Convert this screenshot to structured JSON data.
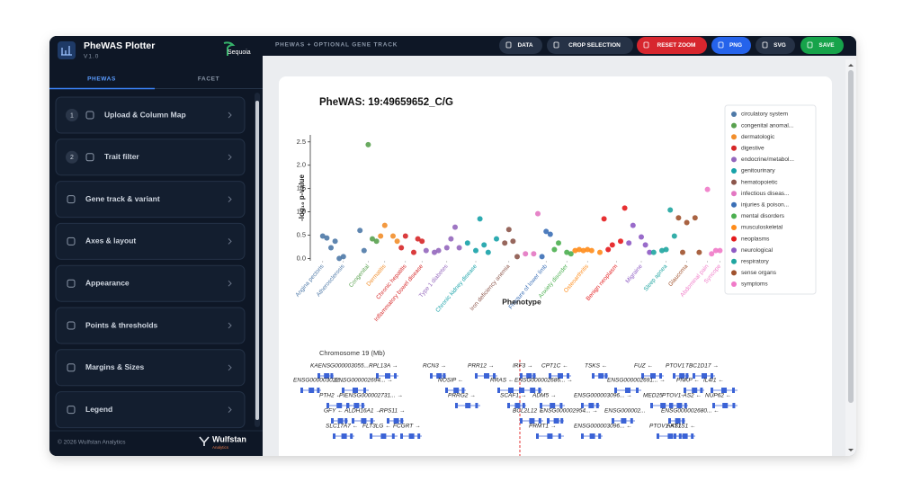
{
  "app": {
    "title": "PheWAS Plotter",
    "version": "V1.0",
    "brand": "Sequoia",
    "tabs": [
      "PHEWAS",
      "FACET"
    ],
    "sections": [
      {
        "step": "1",
        "label": "Upload & Column Map"
      },
      {
        "step": "2",
        "label": "Trait filter"
      },
      {
        "label": "Gene track & variant"
      },
      {
        "label": "Axes & layout"
      },
      {
        "label": "Appearance"
      },
      {
        "label": "Points & thresholds"
      },
      {
        "label": "Margins & Sizes"
      },
      {
        "label": "Legend"
      }
    ],
    "footer": "© 2026 Wulfstan Analytics",
    "footer_brand": "Wulfstan",
    "footer_brand_sub": "Analytics"
  },
  "toolbar": {
    "title": "PHEWAS + OPTIONAL GENE TRACK",
    "buttons": [
      "DATA",
      "CROP SELECTION",
      "RESET ZOOM",
      "PNG",
      "SVG",
      "SAVE"
    ]
  },
  "chart_data": {
    "type": "scatter",
    "title": "PheWAS: 19:49659652_C/G",
    "x_label": "Phenotype",
    "y_label": "-log₁₀ p-value",
    "xlim": [
      0,
      100
    ],
    "ylim": [
      -0.05,
      2.65
    ],
    "yticks": [
      {
        "value": 0,
        "label": "0.0"
      },
      {
        "value": 0.5,
        "label": "0.5"
      },
      {
        "value": 1,
        "label": "1.0"
      },
      {
        "value": 1.5,
        "label": "1.5"
      },
      {
        "value": 2,
        "label": "2.0"
      },
      {
        "value": 2.5,
        "label": "2.5"
      }
    ],
    "xticks": [
      {
        "value": 3,
        "label": "Angina pectoris"
      },
      {
        "value": 8,
        "label": "Atherosclerosis"
      },
      {
        "value": 14,
        "label": "Congenital"
      },
      {
        "value": 18,
        "label": "Dermatitis"
      },
      {
        "value": 23,
        "label": "Chronic hepatitis"
      },
      {
        "value": 27,
        "label": "Inflammatory bowel disease"
      },
      {
        "value": 33,
        "label": "Type 1 diabetes"
      },
      {
        "value": 40,
        "label": "Chronic kidney disease"
      },
      {
        "value": 48,
        "label": "Iron deficiency anemia"
      },
      {
        "value": 57,
        "label": "Fracture of lower limb"
      },
      {
        "value": 62,
        "label": "Anxiety disorder"
      },
      {
        "value": 67,
        "label": "Osteoarthritis"
      },
      {
        "value": 74,
        "label": "Benign neoplasm"
      },
      {
        "value": 80,
        "label": "Migraine"
      },
      {
        "value": 86,
        "label": "Sleep apnea"
      },
      {
        "value": 91,
        "label": "Glaucoma"
      },
      {
        "value": 96,
        "label": "Abdominal pain"
      },
      {
        "value": 99,
        "label": "Syncope"
      }
    ],
    "legend": "right",
    "series": [
      {
        "name": "circulatory system",
        "color": "#4e79a7",
        "x": [
          3,
          4,
          5,
          6,
          7,
          8,
          12,
          13
        ],
        "values": [
          0.48,
          0.44,
          0.23,
          0.37,
          0.0,
          0.04,
          0.6,
          0.17
        ]
      },
      {
        "name": "congenital anomal...",
        "color": "#59a14f",
        "x": [
          14,
          15,
          16
        ],
        "values": [
          2.44,
          0.42,
          0.37
        ]
      },
      {
        "name": "dermatologic",
        "color": "#f28e2b",
        "x": [
          17,
          18,
          20,
          21
        ],
        "values": [
          0.48,
          0.71,
          0.48,
          0.37
        ]
      },
      {
        "name": "digestive",
        "color": "#d62728",
        "x": [
          22,
          23,
          25,
          26,
          27
        ],
        "values": [
          0.23,
          0.48,
          0.13,
          0.42,
          0.37
        ]
      },
      {
        "name": "endocrine/metabol...",
        "color": "#9467bd",
        "x": [
          28,
          30,
          31,
          33,
          34,
          35,
          36
        ],
        "values": [
          0.17,
          0.13,
          0.17,
          0.23,
          0.42,
          0.67,
          0.23
        ]
      },
      {
        "name": "genitourinary",
        "color": "#17a2a8",
        "x": [
          38,
          40,
          41,
          42,
          43,
          45
        ],
        "values": [
          0.33,
          0.17,
          0.85,
          0.29,
          0.13,
          0.42
        ]
      },
      {
        "name": "hematopoietic",
        "color": "#8c564b",
        "x": [
          47,
          48,
          49,
          50
        ],
        "values": [
          0.33,
          0.62,
          0.37,
          0.04
        ]
      },
      {
        "name": "infectious diseas...",
        "color": "#e377c2",
        "x": [
          52,
          54,
          55
        ],
        "values": [
          0.1,
          0.1,
          0.96
        ]
      },
      {
        "name": "injuries & poison...",
        "color": "#3b6fb6",
        "x": [
          56,
          57,
          58
        ],
        "values": [
          0.04,
          0.58,
          0.52
        ]
      },
      {
        "name": "mental disorders",
        "color": "#4caf50",
        "x": [
          59,
          60,
          62,
          63
        ],
        "values": [
          0.19,
          0.33,
          0.13,
          0.1
        ]
      },
      {
        "name": "musculoskeletal",
        "color": "#ff8c1a",
        "x": [
          64,
          65,
          66,
          67,
          68,
          70
        ],
        "values": [
          0.17,
          0.19,
          0.17,
          0.19,
          0.17,
          0.13
        ]
      },
      {
        "name": "neoplasms",
        "color": "#e41a1c",
        "x": [
          71,
          72,
          73,
          75,
          76
        ],
        "values": [
          0.85,
          0.19,
          0.29,
          0.37,
          1.08
        ]
      },
      {
        "name": "neurological",
        "color": "#8e5bc4",
        "x": [
          77,
          78,
          80,
          81,
          82
        ],
        "values": [
          0.33,
          0.71,
          0.46,
          0.29,
          0.13
        ]
      },
      {
        "name": "respiratory",
        "color": "#1fa5a0",
        "x": [
          83,
          85,
          86,
          87,
          88
        ],
        "values": [
          0.13,
          0.17,
          0.19,
          1.04,
          0.48
        ]
      },
      {
        "name": "sense organs",
        "color": "#a0522d",
        "x": [
          89,
          90,
          91,
          93,
          94
        ],
        "values": [
          0.87,
          0.13,
          0.77,
          0.87,
          0.13
        ]
      },
      {
        "name": "symptoms",
        "color": "#f07ac8",
        "x": [
          96,
          97,
          98,
          99
        ],
        "values": [
          1.48,
          0.1,
          0.17,
          0.17
        ]
      }
    ]
  },
  "gene_track": {
    "title": "Chromosome 19 (Mb)",
    "rows": [
      [
        "KAENSG000003055...",
        "RPL13A →",
        "RCN3 →",
        "PRR12 →",
        "IRF3 →",
        "CPT1C ←",
        "TSKS ←",
        "FUZ ←",
        "PTOV1",
        "TBC1D17 →"
      ],
      [
        "ENSG000003022...",
        "ENSG000002694... →",
        "NOSIP ←",
        "RRAS ←",
        "ENSG000002686... →",
        "ENSG000002691... →",
        "PNKP ←",
        "IL4I1 ←"
      ],
      [
        "PTH2 ←",
        "PIENSG000002731... →",
        "PRRG2 →",
        "SCAF1 →",
        "ADM5 →",
        "ENSG000003096... →",
        "MED25",
        "PTOV1-AS2 ←",
        "NUP62 ←"
      ],
      [
        "GFY ←",
        "ALDH16A1 →",
        "RPS11 →",
        "BCL2L12 ←",
        "ENSG000002954... →",
        "ENSG000002...",
        "ENSG000002680... ←"
      ],
      [
        "SLC17A7 ←",
        "FLT3LG ←",
        "FCGRT →",
        "PRMT1 →",
        "ENSG000003096... ←",
        "PTOV1-AS1",
        "AKT1S1 ←"
      ]
    ]
  }
}
